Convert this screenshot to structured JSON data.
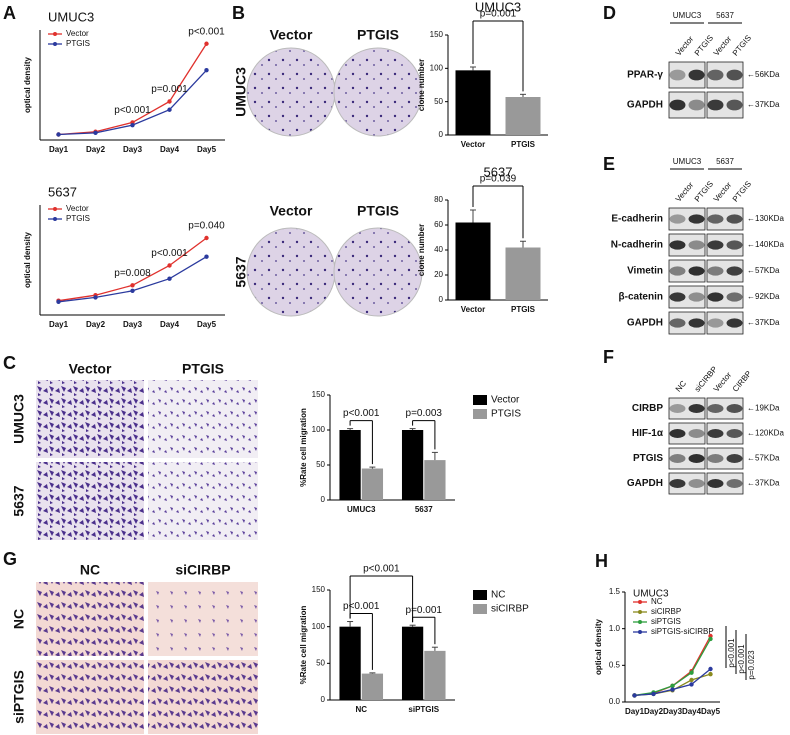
{
  "panel_letters": [
    "A",
    "B",
    "C",
    "D",
    "E",
    "F",
    "G",
    "H"
  ],
  "B_images": {
    "top": {
      "columns": [
        "Vector",
        "PTGIS"
      ],
      "row": "UMUC3"
    },
    "bottom": {
      "columns": [
        "Vector",
        "PTGIS"
      ],
      "row": "5637"
    }
  },
  "C_images": {
    "columns": [
      "Vector",
      "PTGIS"
    ],
    "rows": [
      "UMUC3",
      "5637"
    ]
  },
  "G_images": {
    "columns": [
      "NC",
      "siCIRBP"
    ],
    "rows": [
      "NC",
      "siPTGIS"
    ]
  },
  "D_blot": {
    "groups": [
      "UMUC3",
      "5637"
    ],
    "lanes": [
      "Vector",
      "PTGIS",
      "Vector",
      "PTGIS"
    ],
    "rows": [
      {
        "label": "PPAR-γ",
        "size": "←56KDa"
      },
      {
        "label": "GAPDH",
        "size": "←37KDa"
      }
    ]
  },
  "E_blot": {
    "groups": [
      "UMUC3",
      "5637"
    ],
    "lanes": [
      "Vector",
      "PTGIS",
      "Vector",
      "PTGIS"
    ],
    "rows": [
      {
        "label": "E-cadherin",
        "size": "←130KDa"
      },
      {
        "label": "N-cadherin",
        "size": "←140KDa"
      },
      {
        "label": "Vimetin",
        "size": "←57KDa"
      },
      {
        "label": "β-catenin",
        "size": "←92KDa"
      },
      {
        "label": "GAPDH",
        "size": "←37KDa"
      }
    ]
  },
  "F_blot": {
    "groups": [],
    "lanes": [
      "NC",
      "siCIRBP",
      "Vector",
      "CIRBP"
    ],
    "rows": [
      {
        "label": "CIRBP",
        "size": "←19KDa"
      },
      {
        "label": "HIF-1α",
        "size": "←120KDa"
      },
      {
        "label": "PTGIS",
        "size": "←57KDa"
      },
      {
        "label": "GAPDH",
        "size": "←37KDa"
      }
    ]
  },
  "chart_data": [
    {
      "type": "line",
      "title": "UMUC3",
      "y_label": "optical density",
      "categories": [
        "Day1",
        "Day2",
        "Day3",
        "Day4",
        "Day5"
      ],
      "ylim": [
        0,
        2
      ],
      "series": [
        {
          "name": "Vector",
          "color": "#e0312d",
          "values": [
            0.1,
            0.15,
            0.32,
            0.7,
            1.75
          ]
        },
        {
          "name": "PTGIS",
          "color": "#2b3a9e",
          "values": [
            0.1,
            0.13,
            0.27,
            0.55,
            1.27
          ]
        }
      ],
      "annotations": [
        {
          "text": "p<0.001",
          "category": "Day3"
        },
        {
          "text": "p=0.001",
          "category": "Day4"
        },
        {
          "text": "p<0.001",
          "category": "Day5"
        }
      ]
    },
    {
      "type": "line",
      "title": "5637",
      "y_label": "optical density",
      "categories": [
        "Day1",
        "Day2",
        "Day3",
        "Day4",
        "Day5"
      ],
      "ylim": [
        0,
        1
      ],
      "series": [
        {
          "name": "Vector",
          "color": "#e0312d",
          "values": [
            0.13,
            0.18,
            0.27,
            0.45,
            0.7
          ]
        },
        {
          "name": "PTGIS",
          "color": "#2b3a9e",
          "values": [
            0.12,
            0.16,
            0.22,
            0.33,
            0.53
          ]
        }
      ],
      "annotations": [
        {
          "text": "p=0.008",
          "category": "Day3"
        },
        {
          "text": "p<0.001",
          "category": "Day4"
        },
        {
          "text": "p=0.040",
          "category": "Day5"
        }
      ]
    },
    {
      "type": "bar",
      "title": "UMUC3",
      "y_label": "clone number",
      "categories": [
        "Vector",
        "PTGIS"
      ],
      "values": [
        97,
        57
      ],
      "errors": [
        5,
        4
      ],
      "colors": [
        "#000000",
        "#999999"
      ],
      "ylim": [
        0,
        150
      ],
      "yticks": [
        0,
        50,
        100,
        150
      ],
      "annotations": [
        {
          "text": "p=0.001"
        }
      ]
    },
    {
      "type": "bar",
      "title": "5637",
      "y_label": "clone number",
      "categories": [
        "Vector",
        "PTGIS"
      ],
      "values": [
        62,
        42
      ],
      "errors": [
        10,
        5
      ],
      "colors": [
        "#000000",
        "#999999"
      ],
      "ylim": [
        0,
        80
      ],
      "yticks": [
        0,
        20,
        40,
        60,
        80
      ],
      "annotations": [
        {
          "text": "p=0.039"
        }
      ]
    },
    {
      "type": "bar",
      "y_label": "%Rate cell migration",
      "categories": [
        "UMUC3",
        "5637"
      ],
      "series": [
        {
          "name": "Vector",
          "color": "#000000",
          "values": [
            100,
            100
          ],
          "errors": [
            2,
            2
          ]
        },
        {
          "name": "PTGIS",
          "color": "#999999",
          "values": [
            45,
            57
          ],
          "errors": [
            2,
            11
          ]
        }
      ],
      "ylim": [
        0,
        150
      ],
      "yticks": [
        0,
        50,
        100,
        150
      ],
      "annotations": [
        {
          "text": "p<0.001",
          "category": "UMUC3"
        },
        {
          "text": "p=0.003",
          "category": "5637"
        }
      ]
    },
    {
      "type": "bar",
      "y_label": "%Rate cell migration",
      "categories": [
        "NC",
        "siPTGIS"
      ],
      "series": [
        {
          "name": "NC",
          "color": "#000000",
          "values": [
            100,
            100
          ],
          "errors": [
            7,
            2
          ]
        },
        {
          "name": "siCIRBP",
          "color": "#999999",
          "values": [
            36,
            67
          ],
          "errors": [
            1,
            5
          ]
        }
      ],
      "ylim": [
        0,
        150
      ],
      "yticks": [
        0,
        50,
        100,
        150
      ],
      "annotations": [
        {
          "text": "p<0.001",
          "category": "NC"
        },
        {
          "text": "p=0.001",
          "category": "siPTGIS"
        },
        {
          "text": "p<0.001"
        }
      ]
    },
    {
      "type": "line",
      "title": "UMUC3",
      "y_label": "optical density",
      "categories": [
        "Day1",
        "Day2",
        "Day3",
        "Day4",
        "Day5"
      ],
      "ylim": [
        0,
        1.5
      ],
      "yticks": [
        {
          "value": 0,
          "label": "0.0"
        },
        0.5,
        {
          "value": 1,
          "label": "1.0"
        },
        1.5
      ],
      "series": [
        {
          "name": "NC",
          "color": "#e0312d",
          "values": [
            0.09,
            0.12,
            0.22,
            0.42,
            0.9
          ]
        },
        {
          "name": "siCIRBP",
          "color": "#8a8a1e",
          "values": [
            0.09,
            0.11,
            0.16,
            0.3,
            0.38
          ]
        },
        {
          "name": "siPTGIS",
          "color": "#2e9e3e",
          "values": [
            0.09,
            0.13,
            0.22,
            0.4,
            0.86
          ]
        },
        {
          "name": "siPTGIS-siCIRBP",
          "color": "#2b3a9e",
          "values": [
            0.09,
            0.11,
            0.17,
            0.24,
            0.45
          ]
        }
      ],
      "annotations": [
        {
          "text": "p<0.001"
        },
        {
          "text": "p<0.001"
        },
        {
          "text": "p=0.023"
        }
      ]
    }
  ]
}
